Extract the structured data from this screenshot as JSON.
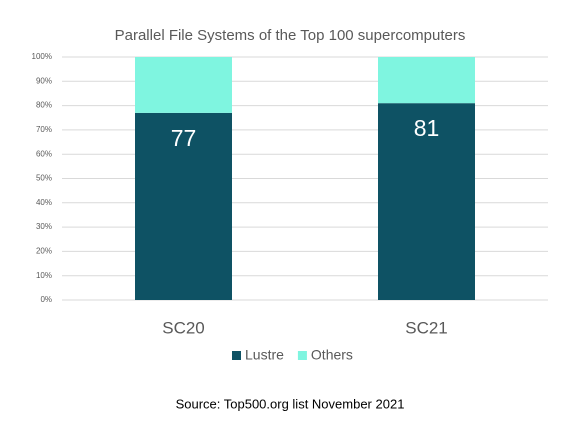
{
  "chart_data": {
    "type": "stacked_bar",
    "title": "Parallel File Systems of the Top 100 supercomputers",
    "categories": [
      "SC20",
      "SC21"
    ],
    "series": [
      {
        "name": "Lustre",
        "color": "#0e5264",
        "values": [
          77,
          81
        ]
      },
      {
        "name": "Others",
        "color": "#7ff5e0",
        "values": [
          23,
          19
        ]
      }
    ],
    "ylim": [
      0,
      100
    ],
    "yticks": [
      {
        "value": 0,
        "label": "0%"
      },
      {
        "value": 10,
        "label": "10%"
      },
      {
        "value": 20,
        "label": "20%"
      },
      {
        "value": 30,
        "label": "30%"
      },
      {
        "value": 40,
        "label": "40%"
      },
      {
        "value": 50,
        "label": "50%"
      },
      {
        "value": 60,
        "label": "60%"
      },
      {
        "value": 70,
        "label": "70%"
      },
      {
        "value": 80,
        "label": "80%"
      },
      {
        "value": 90,
        "label": "90%"
      },
      {
        "value": 100,
        "label": "100%"
      }
    ],
    "grid": true,
    "legend": "bottom",
    "annotation": "Source: Top500.org list November 2021"
  }
}
